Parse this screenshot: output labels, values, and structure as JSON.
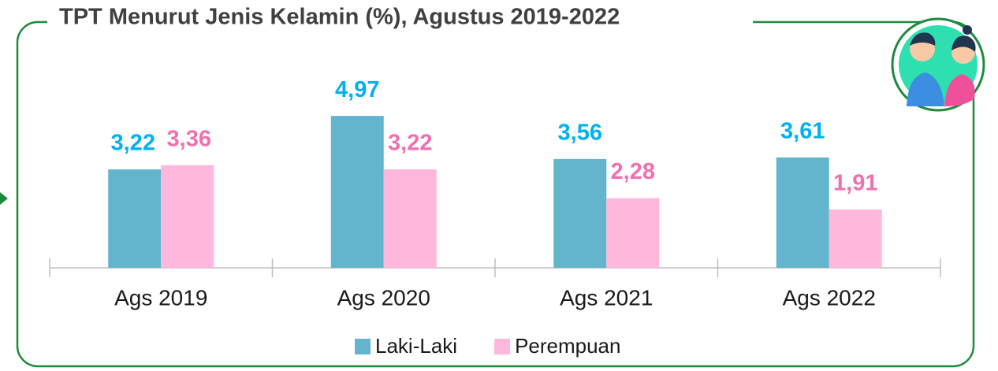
{
  "chart_data": {
    "type": "bar",
    "title": "TPT Menurut Jenis Kelamin (%), Agustus 2019-2022",
    "categories": [
      "Ags 2019",
      "Ags 2020",
      "Ags 2021",
      "Ags 2022"
    ],
    "series": [
      {
        "name": "Laki-Laki",
        "color": "#62b5cc",
        "label_color": "#00b0f0",
        "values": [
          3.22,
          4.97,
          3.56,
          3.61
        ],
        "value_labels": [
          "3,22",
          "4,97",
          "3,56",
          "3,61"
        ]
      },
      {
        "name": "Perempuan",
        "color": "#ffb8dc",
        "label_color": "#f06fae",
        "values": [
          3.36,
          3.22,
          2.28,
          1.91
        ],
        "value_labels": [
          "3,36",
          "3,22",
          "2,28",
          "1,91"
        ]
      }
    ]
  }
}
